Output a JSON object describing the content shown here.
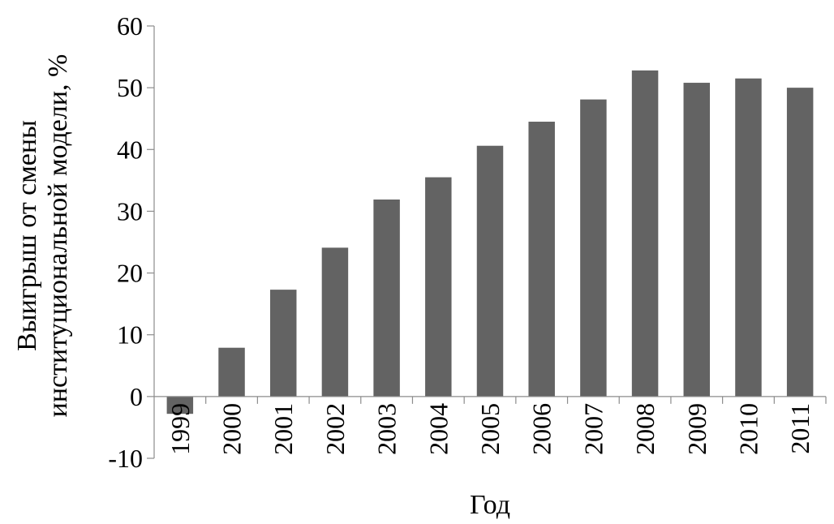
{
  "chart_data": {
    "type": "bar",
    "title": "",
    "xlabel": "Год",
    "ylabel_lines": [
      "Выигрыш от смены",
      "институциональной модели, %"
    ],
    "categories": [
      "1999",
      "2000",
      "2001",
      "2002",
      "2003",
      "2004",
      "2005",
      "2006",
      "2007",
      "2008",
      "2009",
      "2010",
      "2011"
    ],
    "values": [
      -2.8,
      7.9,
      17.3,
      24.1,
      31.9,
      35.5,
      40.6,
      44.5,
      48.1,
      52.8,
      50.8,
      51.5,
      50.0
    ],
    "ylim": [
      -10,
      60
    ],
    "yticks": [
      -10,
      0,
      10,
      20,
      30,
      40,
      50,
      60
    ],
    "grid": false,
    "legend": "none",
    "bar_color": "#636363"
  }
}
